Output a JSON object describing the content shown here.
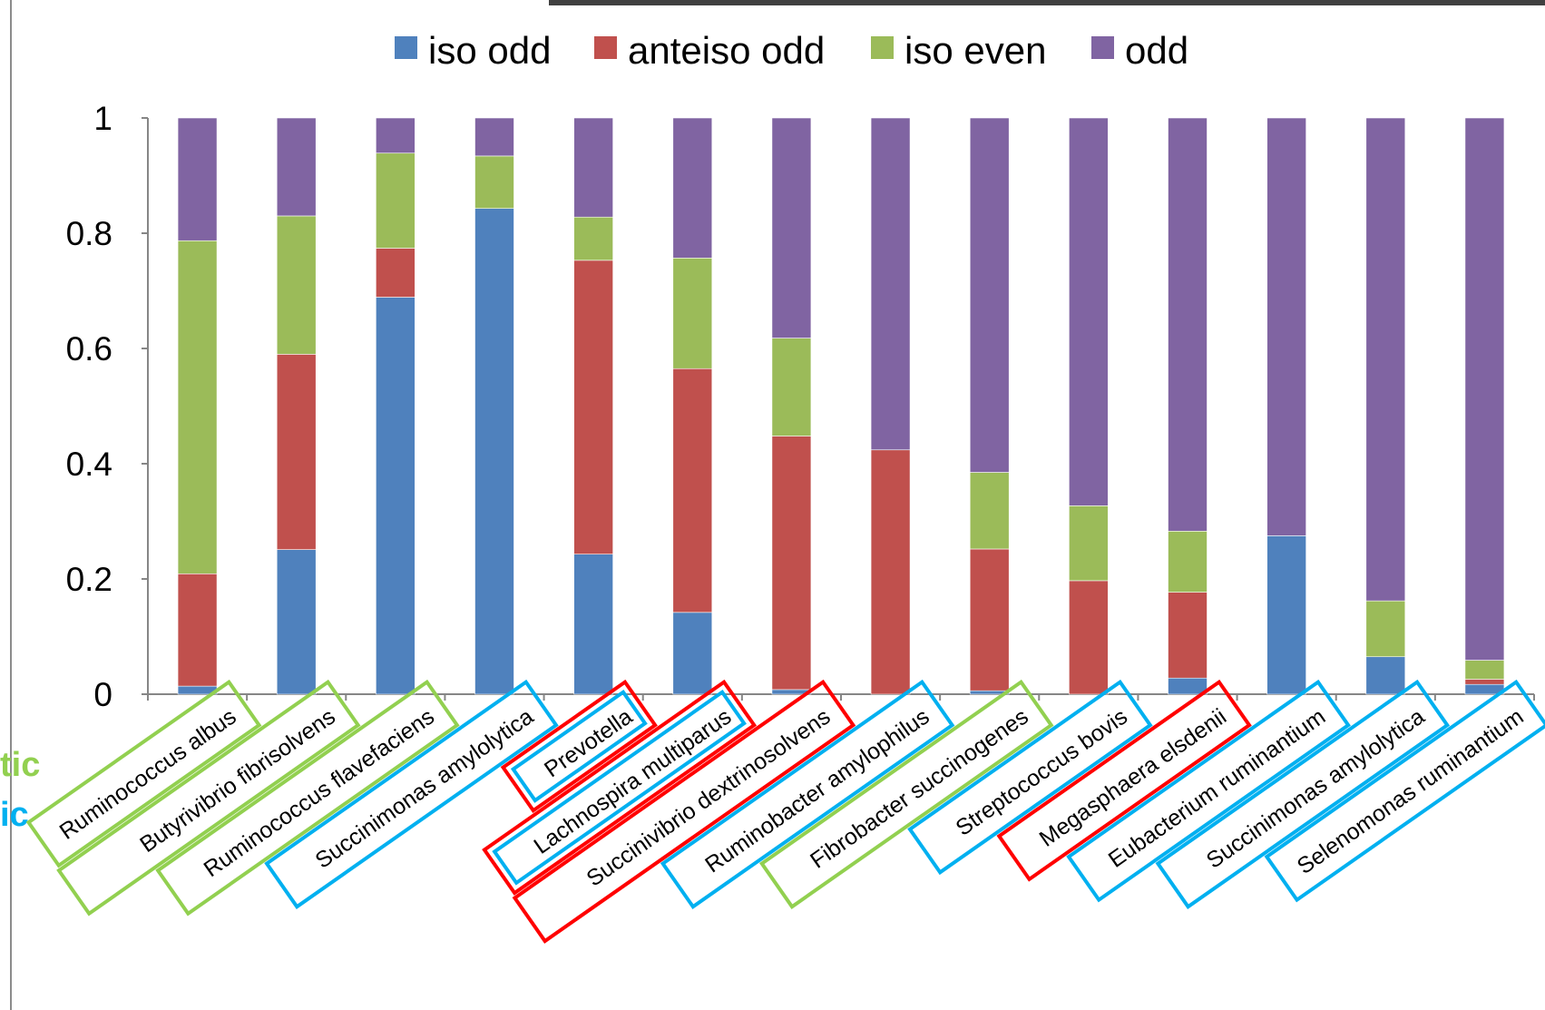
{
  "chart_data": {
    "type": "bar",
    "stacked": true,
    "categories": [
      "Ruminococcus albus",
      "Butyrivibrio fibrisolvens",
      "Ruminococcus flavefaciens",
      "Succinimonas amylolytica",
      "Prevotella",
      "Lachnospira multiparus",
      "Succinivibrio dextrinosolvens",
      "Ruminobacter amylophilus",
      "Fibrobacter succinogenes",
      "Streptococcus bovis",
      "Megasphaera elsdenii",
      "Eubacterium ruminantium",
      "Succinimonas amylolytica",
      "Selenomonas ruminantium"
    ],
    "series": [
      {
        "name": "iso odd",
        "color": "#4f81bd",
        "values": [
          0.014,
          0.251,
          0.689,
          0.843,
          0.243,
          0.142,
          0.008,
          0.0,
          0.006,
          0.0,
          0.028,
          0.275,
          0.065,
          0.017
        ]
      },
      {
        "name": "anteiso odd",
        "color": "#c0504d",
        "values": [
          0.195,
          0.339,
          0.085,
          0.0,
          0.51,
          0.423,
          0.44,
          0.424,
          0.246,
          0.197,
          0.149,
          0.0,
          0.0,
          0.009
        ]
      },
      {
        "name": "iso even",
        "color": "#9bbb59",
        "values": [
          0.578,
          0.24,
          0.165,
          0.091,
          0.075,
          0.192,
          0.17,
          0.0,
          0.133,
          0.13,
          0.106,
          0.0,
          0.097,
          0.033
        ]
      },
      {
        "name": "odd",
        "color": "#8064a2",
        "values": [
          0.213,
          0.17,
          0.061,
          0.066,
          0.172,
          0.243,
          0.382,
          0.576,
          0.615,
          0.673,
          0.717,
          0.725,
          0.838,
          0.941
        ]
      }
    ],
    "label_box_colors": [
      [
        "#92d050"
      ],
      [
        "#92d050"
      ],
      [
        "#92d050"
      ],
      [
        "#00b0f0"
      ],
      [
        "#ff0000",
        "#00b0f0"
      ],
      [
        "#ff0000",
        "#00b0f0"
      ],
      [
        "#ff0000"
      ],
      [
        "#00b0f0"
      ],
      [
        "#92d050"
      ],
      [
        "#00b0f0"
      ],
      [
        "#ff0000"
      ],
      [
        "#00b0f0"
      ],
      [
        "#00b0f0"
      ],
      [
        "#00b0f0"
      ]
    ],
    "yticks": [
      "0",
      "0.2",
      "0.4",
      "0.6",
      "0.8",
      "1"
    ],
    "ylim": [
      0,
      1
    ],
    "legend_position": "top",
    "grid": false
  },
  "partial_text": {
    "line1": {
      "text": "tic",
      "color": "#92d050"
    },
    "line2": {
      "text": "ic",
      "color": "#00b0f0"
    }
  }
}
